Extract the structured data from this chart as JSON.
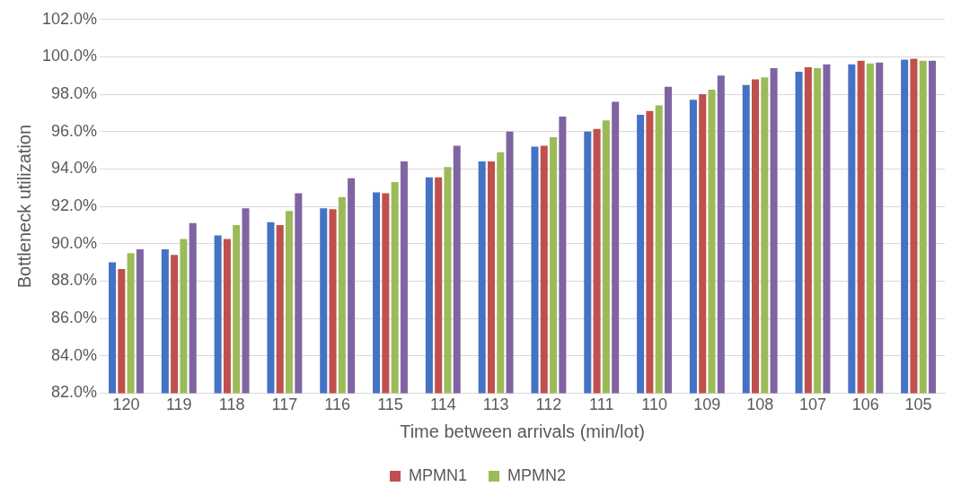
{
  "chart_data": {
    "type": "bar",
    "xlabel": "Time between arrivals (min/lot)",
    "ylabel": "Bottleneck utilization",
    "categories": [
      "120",
      "119",
      "118",
      "117",
      "116",
      "115",
      "114",
      "113",
      "112",
      "111",
      "110",
      "109",
      "108",
      "107",
      "106",
      "105"
    ],
    "series": [
      {
        "color": "#4472c4",
        "values": [
          89.0,
          89.7,
          90.45,
          91.15,
          91.9,
          92.75,
          93.55,
          94.4,
          95.2,
          96.0,
          96.9,
          97.7,
          98.5,
          99.2,
          99.6,
          99.85
        ]
      },
      {
        "name": "MPMN1",
        "color": "#c0504d",
        "values": [
          88.65,
          89.4,
          90.25,
          91.0,
          91.85,
          92.7,
          93.55,
          94.4,
          95.25,
          96.15,
          97.1,
          98.0,
          98.8,
          99.45,
          99.8,
          99.9
        ]
      },
      {
        "name": "MPMN2",
        "color": "#9bbb59",
        "values": [
          89.5,
          90.25,
          91.0,
          91.75,
          92.5,
          93.3,
          94.1,
          94.9,
          95.7,
          96.6,
          97.4,
          98.25,
          98.9,
          99.4,
          99.65,
          99.8
        ]
      },
      {
        "color": "#8064a2",
        "values": [
          89.7,
          91.1,
          91.9,
          92.7,
          93.5,
          94.4,
          95.25,
          96.0,
          96.8,
          97.6,
          98.4,
          99.0,
          99.4,
          99.6,
          99.7,
          99.8
        ]
      }
    ],
    "ylim": [
      82,
      102
    ],
    "yticks": [
      {
        "value": 82,
        "label": "82.0%"
      },
      {
        "value": 84,
        "label": "84.0%"
      },
      {
        "value": 86,
        "label": "86.0%"
      },
      {
        "value": 88,
        "label": "88.0%"
      },
      {
        "value": 90,
        "label": "90.0%"
      },
      {
        "value": 92,
        "label": "92.0%"
      },
      {
        "value": 94,
        "label": "94.0%"
      },
      {
        "value": 96,
        "label": "96.0%"
      },
      {
        "value": 98,
        "label": "98.0%"
      },
      {
        "value": 100,
        "label": "100.0%"
      },
      {
        "value": 102,
        "label": "102.0%"
      }
    ],
    "grid": "y",
    "legend": "bottom"
  }
}
